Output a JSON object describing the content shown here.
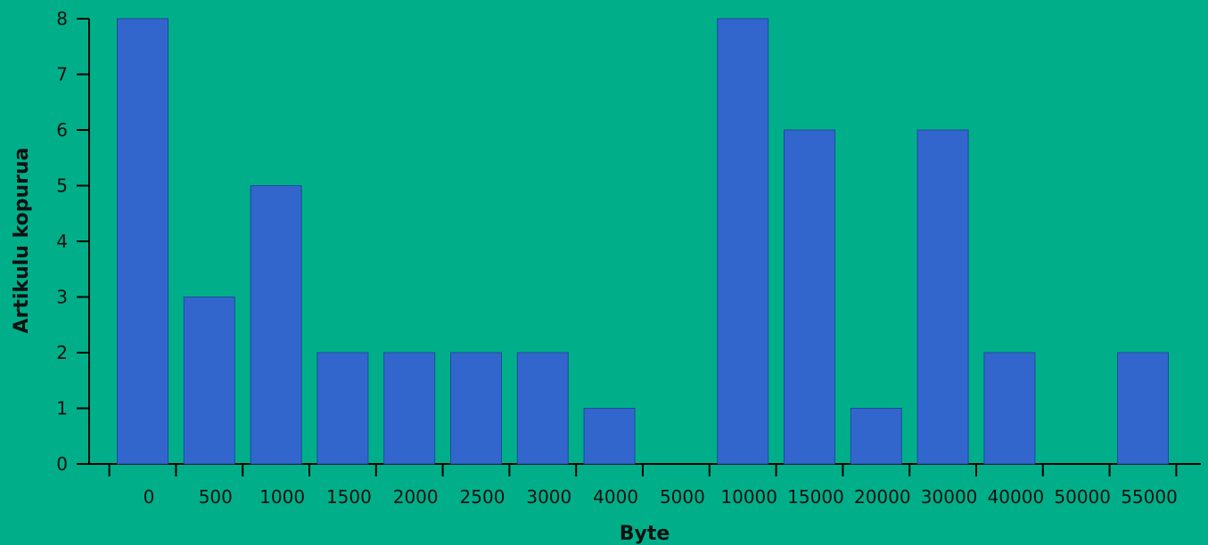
{
  "chart_data": {
    "type": "bar",
    "categories": [
      "0",
      "500",
      "1000",
      "1500",
      "2000",
      "2500",
      "3000",
      "4000",
      "5000",
      "10000",
      "15000",
      "20000",
      "30000",
      "40000",
      "50000",
      "55000"
    ],
    "values": [
      8,
      3,
      5,
      2,
      2,
      2,
      2,
      1,
      0,
      8,
      6,
      1,
      6,
      2,
      0,
      2
    ],
    "xlabel": "Byte",
    "ylabel": "Artikulu kopurua",
    "ylim": [
      0,
      8
    ],
    "yticks": [
      0,
      1,
      2,
      3,
      4,
      5,
      6,
      7,
      8
    ],
    "grid": false,
    "legend": "none",
    "colors": {
      "background": "#00AF89",
      "bar": "#3366CC",
      "axis": "#000000"
    }
  }
}
